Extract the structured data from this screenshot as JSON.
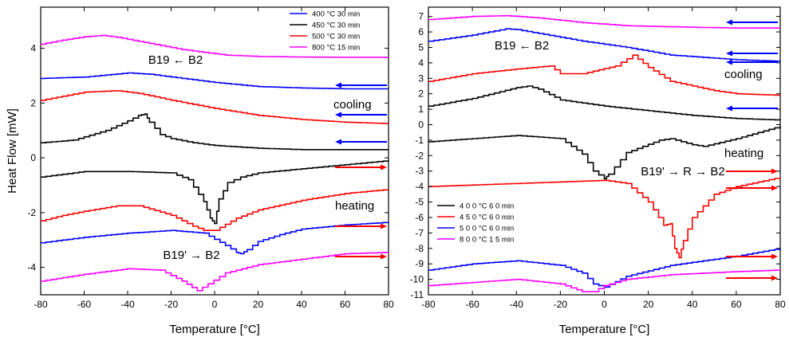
{
  "chart_data": [
    {
      "type": "line",
      "xlabel": "Temperature [°C]",
      "ylabel": "Heat Flow [mW]",
      "xlim": [
        -80,
        80
      ],
      "ylim": [
        -5,
        5.5
      ],
      "xticks": [
        -80,
        -60,
        -40,
        -20,
        0,
        20,
        40,
        60,
        80
      ],
      "yticks": [
        -4,
        -2,
        0,
        2,
        4
      ],
      "legend_position": "top-right",
      "legend": [
        {
          "label": "400 °C 30 min",
          "color": "#0000ff"
        },
        {
          "label": "450 °C 30 min",
          "color": "#000000"
        },
        {
          "label": "500 °C 30 min",
          "color": "#ff0000"
        },
        {
          "label": "800 °C 15 min",
          "color": "#ff00ff"
        }
      ],
      "annotations": {
        "top": "B19 ← B2",
        "cooling": "cooling",
        "heating": "heating",
        "bottom": "B19' → B2"
      },
      "series": [
        {
          "color": "#ff00ff",
          "x": [
            -80,
            -70,
            -60,
            -52,
            -45,
            -35,
            -25,
            -15,
            -5,
            5,
            20,
            40,
            60,
            80
          ],
          "values": [
            4.15,
            4.3,
            4.42,
            4.47,
            4.4,
            4.25,
            4.1,
            3.95,
            3.85,
            3.75,
            3.7,
            3.68,
            3.67,
            3.67
          ]
        },
        {
          "color": "#0000ff",
          "x": [
            -80,
            -60,
            -40,
            -30,
            -20,
            -10,
            0,
            20,
            40,
            60,
            80
          ],
          "values": [
            2.9,
            2.95,
            3.1,
            3.05,
            2.95,
            2.85,
            2.75,
            2.6,
            2.55,
            2.52,
            2.52
          ]
        },
        {
          "color": "#ff0000",
          "x": [
            -80,
            -70,
            -60,
            -45,
            -35,
            -20,
            -10,
            0,
            20,
            40,
            60,
            80
          ],
          "values": [
            2.1,
            2.25,
            2.4,
            2.45,
            2.35,
            2.1,
            1.95,
            1.8,
            1.55,
            1.4,
            1.3,
            1.25
          ]
        },
        {
          "color": "#000000",
          "x": [
            -80,
            -65,
            -50,
            -40,
            -35,
            -32,
            -30,
            -25,
            -20,
            -10,
            0,
            20,
            40,
            60,
            80
          ],
          "values": [
            0.55,
            0.65,
            1.0,
            1.35,
            1.55,
            1.6,
            1.3,
            0.85,
            0.7,
            0.55,
            0.45,
            0.35,
            0.3,
            0.3,
            0.3
          ]
        },
        {
          "color": "#000000",
          "x": [
            -80,
            -70,
            -60,
            -40,
            -20,
            -12,
            -5,
            -2,
            0,
            2,
            6,
            12,
            20,
            40,
            60,
            80
          ],
          "values": [
            -0.7,
            -0.6,
            -0.5,
            -0.5,
            -0.55,
            -0.8,
            -1.6,
            -2.2,
            -2.4,
            -1.5,
            -0.9,
            -0.7,
            -0.55,
            -0.4,
            -0.25,
            -0.1
          ]
        },
        {
          "color": "#ff0000",
          "x": [
            -80,
            -70,
            -60,
            -45,
            -35,
            -20,
            -10,
            -5,
            0,
            10,
            20,
            40,
            60,
            80
          ],
          "values": [
            -2.3,
            -2.1,
            -1.95,
            -1.75,
            -1.75,
            -2.1,
            -2.5,
            -2.65,
            -2.65,
            -2.2,
            -1.9,
            -1.55,
            -1.3,
            -1.15
          ]
        },
        {
          "color": "#0000ff",
          "x": [
            -80,
            -60,
            -40,
            -20,
            -5,
            5,
            10,
            12,
            15,
            20,
            30,
            40,
            60,
            80
          ],
          "values": [
            -3.1,
            -2.9,
            -2.75,
            -2.65,
            -2.75,
            -3.2,
            -3.45,
            -3.5,
            -3.35,
            -3.05,
            -2.8,
            -2.6,
            -2.45,
            -2.35
          ]
        },
        {
          "color": "#ff00ff",
          "x": [
            -80,
            -60,
            -40,
            -25,
            -15,
            -8,
            -3,
            5,
            20,
            40,
            60,
            80
          ],
          "values": [
            -4.5,
            -4.25,
            -4.05,
            -4.1,
            -4.5,
            -4.85,
            -4.6,
            -4.2,
            -3.9,
            -3.7,
            -3.5,
            -3.45
          ]
        }
      ]
    },
    {
      "type": "line",
      "xlabel": "Temperature [°C]",
      "ylabel": "",
      "xlim": [
        -80,
        80
      ],
      "ylim": [
        -11,
        7.6
      ],
      "xticks": [
        -80,
        -60,
        -40,
        -20,
        0,
        20,
        40,
        60,
        80
      ],
      "yticks": [
        7,
        6,
        5,
        4,
        3,
        2,
        1,
        0,
        -1,
        -2,
        -3,
        -4,
        -5,
        -6,
        -7,
        -8,
        -9,
        -10,
        -11
      ],
      "legend_position": "bottom-left",
      "legend": [
        {
          "label": "4 0 0 °C 6 0 min",
          "color": "#000000"
        },
        {
          "label": "4 5 0 °C 6 0 min",
          "color": "#ff0000"
        },
        {
          "label": "5 0 0 °C 6 0 min",
          "color": "#0000ff"
        },
        {
          "label": "8 0 0 °C 1 5 min",
          "color": "#ff00ff"
        }
      ],
      "annotations": {
        "top": "B19 ← B2",
        "cooling": "cooling",
        "heating": "heating",
        "middle": "B19' → R → B2"
      },
      "series": [
        {
          "color": "#ff00ff",
          "x": [
            -80,
            -60,
            -45,
            -30,
            -10,
            10,
            40,
            60,
            80
          ],
          "values": [
            6.8,
            7.0,
            7.05,
            6.9,
            6.6,
            6.4,
            6.3,
            6.25,
            6.25
          ]
        },
        {
          "color": "#0000ff",
          "x": [
            -80,
            -60,
            -45,
            -40,
            -30,
            -10,
            10,
            30,
            60,
            80
          ],
          "values": [
            5.4,
            5.8,
            6.2,
            6.15,
            5.9,
            5.4,
            5.0,
            4.5,
            4.2,
            4.1
          ]
        },
        {
          "color": "#ff0000",
          "x": [
            -80,
            -60,
            -40,
            -25,
            -20,
            -10,
            5,
            13,
            20,
            30,
            50,
            60,
            80
          ],
          "values": [
            2.8,
            3.3,
            3.6,
            3.8,
            3.3,
            3.3,
            3.8,
            4.5,
            3.7,
            2.8,
            2.2,
            2.0,
            1.9
          ]
        },
        {
          "color": "#000000",
          "x": [
            -80,
            -60,
            -40,
            -35,
            -30,
            -20,
            0,
            20,
            40,
            60,
            80
          ],
          "values": [
            1.2,
            1.7,
            2.4,
            2.5,
            2.3,
            1.6,
            1.2,
            0.9,
            0.6,
            0.4,
            0.3
          ]
        },
        {
          "color": "#000000",
          "x": [
            -80,
            -60,
            -40,
            -20,
            -10,
            -5,
            0,
            2,
            10,
            25,
            30,
            40,
            45,
            60,
            80
          ],
          "values": [
            -1.1,
            -0.9,
            -0.7,
            -0.9,
            -1.9,
            -3.0,
            -3.5,
            -3.2,
            -1.8,
            -1.0,
            -0.9,
            -1.3,
            -1.4,
            -0.9,
            -0.1
          ]
        },
        {
          "color": "#ff0000",
          "x": [
            -80,
            -40,
            -20,
            0,
            10,
            20,
            27,
            30,
            32,
            34,
            36,
            40,
            50,
            60,
            80
          ],
          "values": [
            -4.0,
            -3.8,
            -3.7,
            -3.6,
            -3.8,
            -5.0,
            -6.5,
            -6.4,
            -8.0,
            -8.6,
            -7.5,
            -6.0,
            -4.5,
            -4.0,
            -3.4
          ]
        },
        {
          "color": "#0000ff",
          "x": [
            -80,
            -60,
            -40,
            -20,
            -10,
            -5,
            0,
            10,
            30,
            60,
            80
          ],
          "values": [
            -9.4,
            -9.0,
            -8.8,
            -9.1,
            -9.6,
            -10.3,
            -10.5,
            -9.8,
            -9.1,
            -8.5,
            -8.0
          ]
        },
        {
          "color": "#ff00ff",
          "x": [
            -80,
            -60,
            -40,
            -20,
            -10,
            -5,
            0,
            10,
            30,
            60,
            80
          ],
          "values": [
            -10.4,
            -10.2,
            -10.0,
            -10.3,
            -10.8,
            -10.8,
            -10.4,
            -10.0,
            -9.7,
            -9.5,
            -9.4
          ]
        }
      ]
    }
  ]
}
